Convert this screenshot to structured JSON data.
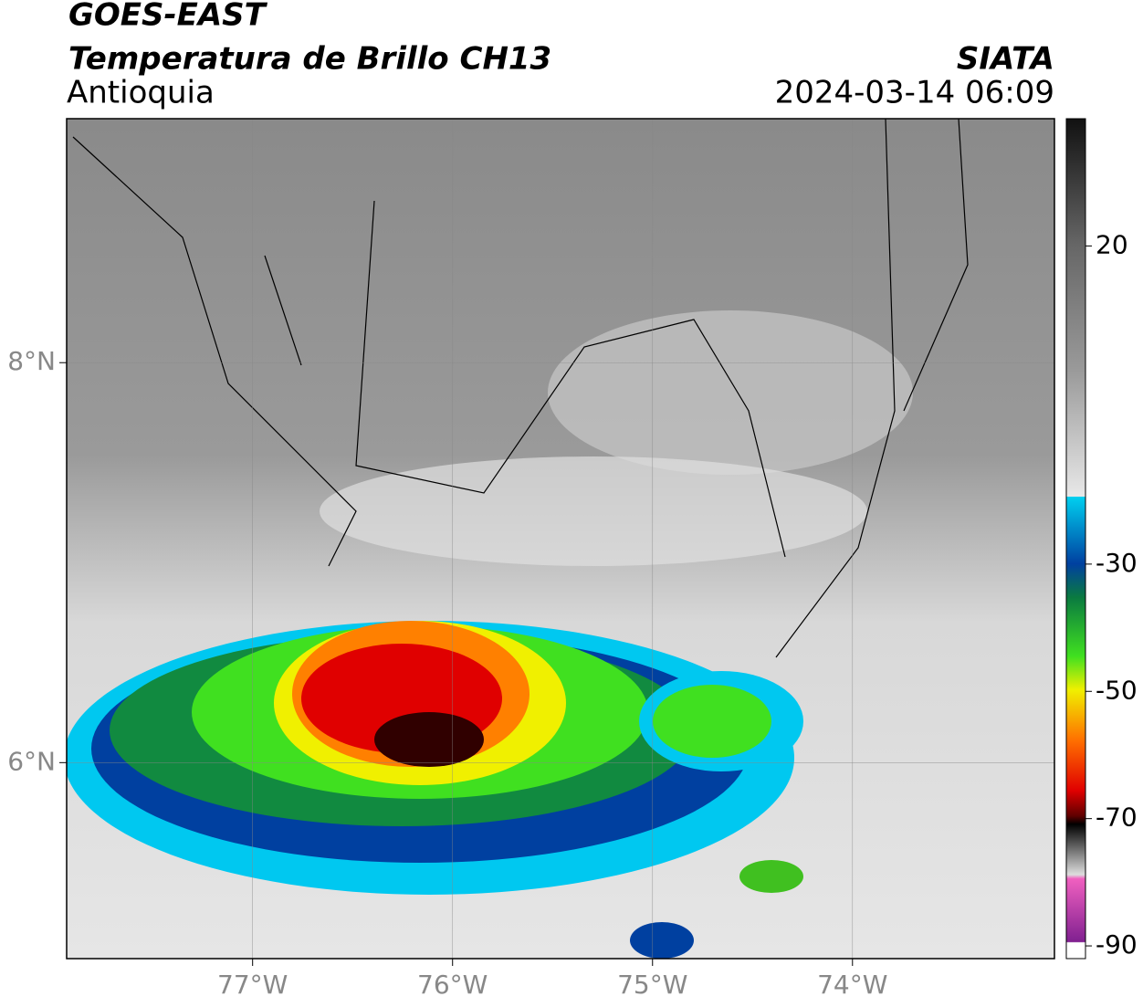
{
  "header": {
    "title": "GOES-EAST",
    "subtitle": "Temperatura de Brillo CH13",
    "region": "Antioquia",
    "source": "SIATA",
    "datetime": "2024-03-14 06:09"
  },
  "map": {
    "xlim": [
      -77.93,
      -72.99
    ],
    "ylim": [
      5.02,
      9.22
    ],
    "xticks": [
      {
        "value": -77,
        "label": "77°W"
      },
      {
        "value": -76,
        "label": "76°W"
      },
      {
        "value": -75,
        "label": "75°W"
      },
      {
        "value": -74,
        "label": "74°W"
      }
    ],
    "yticks": [
      {
        "value": 6,
        "label": "6°N"
      },
      {
        "value": 8,
        "label": "8°N"
      }
    ],
    "grid": true
  },
  "colorbar": {
    "clim": [
      -92,
      40
    ],
    "ticks": [
      20,
      -30,
      -50,
      -70,
      -90
    ]
  }
}
